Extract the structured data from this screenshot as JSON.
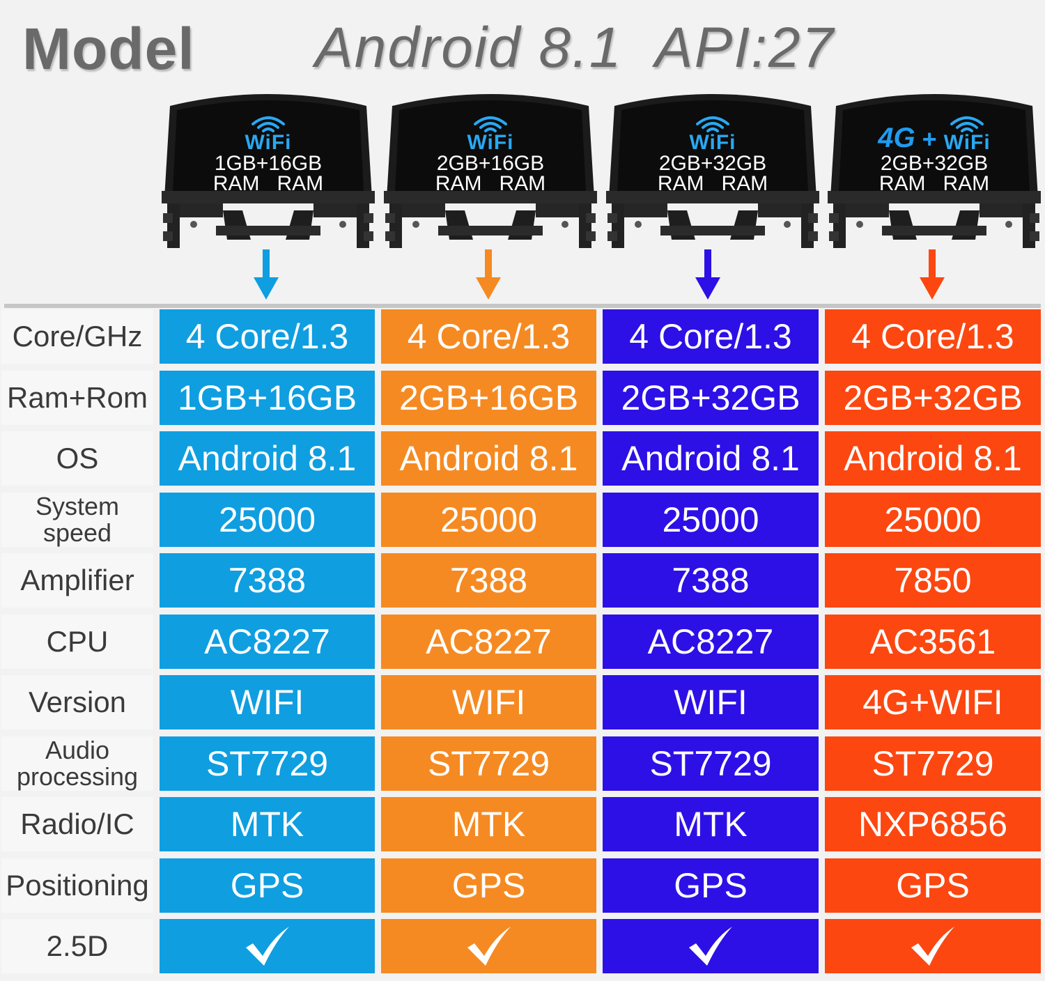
{
  "header": {
    "model_label": "Model",
    "os_label": "Android 8.1  API:27"
  },
  "colors": {
    "col0": "#0f9ee0",
    "col1": "#f58a22",
    "col2": "#2d10e6",
    "col3": "#fc4711"
  },
  "devices": [
    {
      "wifi": "WiFi",
      "memory": "1GB+16GB",
      "ram": "RAM   RAM"
    },
    {
      "wifi": "WiFi",
      "memory": "2GB+16GB",
      "ram": "RAM   RAM"
    },
    {
      "wifi": "WiFi",
      "memory": "2GB+32GB",
      "ram": "RAM   RAM"
    },
    {
      "g4": "4G",
      "plus": "+",
      "wifi": "WiFi",
      "memory": "2GB+32GB",
      "ram": "RAM   RAM"
    }
  ],
  "rows": [
    {
      "label": "Core/GHz",
      "values": [
        "4 Core/1.3",
        "4 Core/1.3",
        "4 Core/1.3",
        "4 Core/1.3"
      ]
    },
    {
      "label": "Ram+Rom",
      "values": [
        "1GB+16GB",
        "2GB+16GB",
        "2GB+32GB",
        "2GB+32GB"
      ]
    },
    {
      "label": "OS",
      "values": [
        "Android 8.1",
        "Android 8.1",
        "Android 8.1",
        "Android 8.1"
      ]
    },
    {
      "label": "System speed",
      "label_lines": [
        "System",
        "speed"
      ],
      "values": [
        "25000",
        "25000",
        "25000",
        "25000"
      ]
    },
    {
      "label": "Amplifier",
      "values": [
        "7388",
        "7388",
        "7388",
        "7850"
      ]
    },
    {
      "label": "CPU",
      "values": [
        "AC8227",
        "AC8227",
        "AC8227",
        "AC3561"
      ]
    },
    {
      "label": "Version",
      "values": [
        "WIFI",
        "WIFI",
        "WIFI",
        "4G+WIFI"
      ]
    },
    {
      "label": "Audio processing",
      "label_lines": [
        "Audio",
        "processing"
      ],
      "values": [
        "ST7729",
        "ST7729",
        "ST7729",
        "ST7729"
      ]
    },
    {
      "label": "Radio/IC",
      "values": [
        "MTK",
        "MTK",
        "MTK",
        "NXP6856"
      ]
    },
    {
      "label": "Positioning",
      "values": [
        "GPS",
        "GPS",
        "GPS",
        "GPS"
      ]
    },
    {
      "label": "2.5D",
      "values": [
        "check-icon",
        "check-icon",
        "check-icon",
        "check-icon"
      ]
    }
  ]
}
